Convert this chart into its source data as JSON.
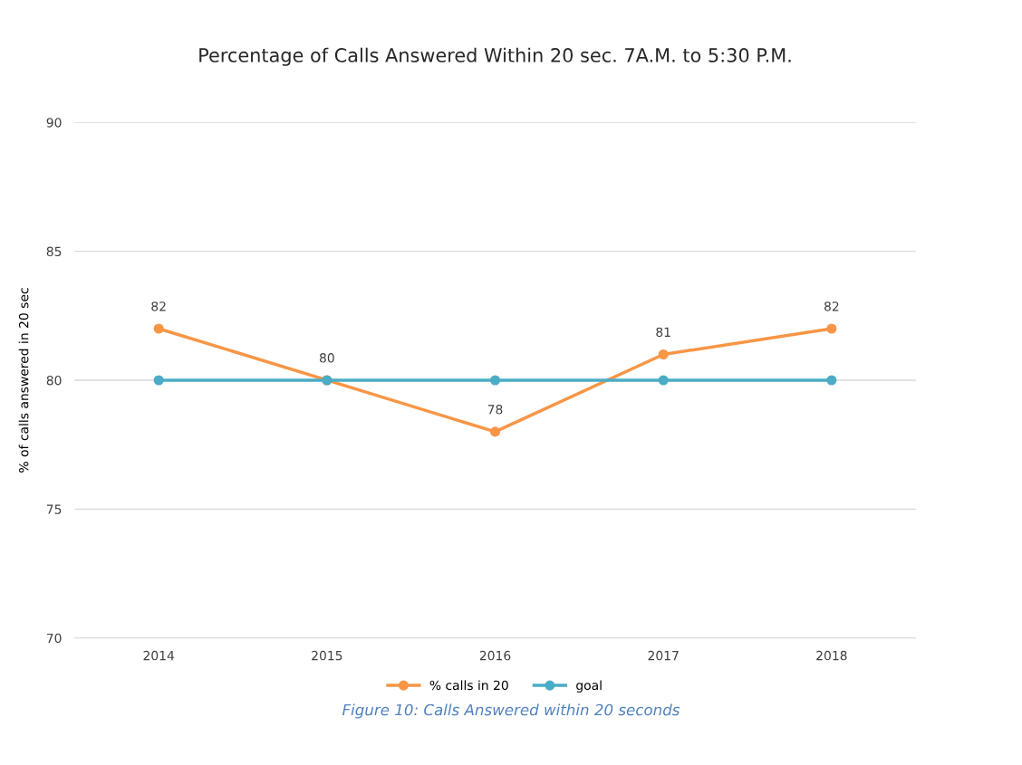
{
  "chart_data": {
    "type": "line",
    "title": "Percentage of Calls Answered Within 20 sec. 7A.M. to 5:30 P.M.",
    "ylabel": "% of calls answered in 20 sec",
    "categories": [
      "2014",
      "2015",
      "2016",
      "2017",
      "2018"
    ],
    "series": [
      {
        "name": "% calls in 20",
        "color": "#f79646",
        "values": [
          82,
          80,
          78,
          81,
          82
        ],
        "value_labels": [
          "82",
          "80",
          "78",
          "81",
          "82"
        ]
      },
      {
        "name": "goal",
        "color": "#4bacc6",
        "values": [
          80,
          80,
          80,
          80,
          80
        ]
      }
    ],
    "ylim": [
      70,
      90
    ],
    "yticks": [
      70,
      75,
      80,
      85,
      90
    ],
    "grid": "y",
    "legend": "bottom",
    "marker": "circle",
    "line_style": "solid",
    "annotations": [
      "Figure 10: Calls Answered within 20 seconds"
    ]
  }
}
